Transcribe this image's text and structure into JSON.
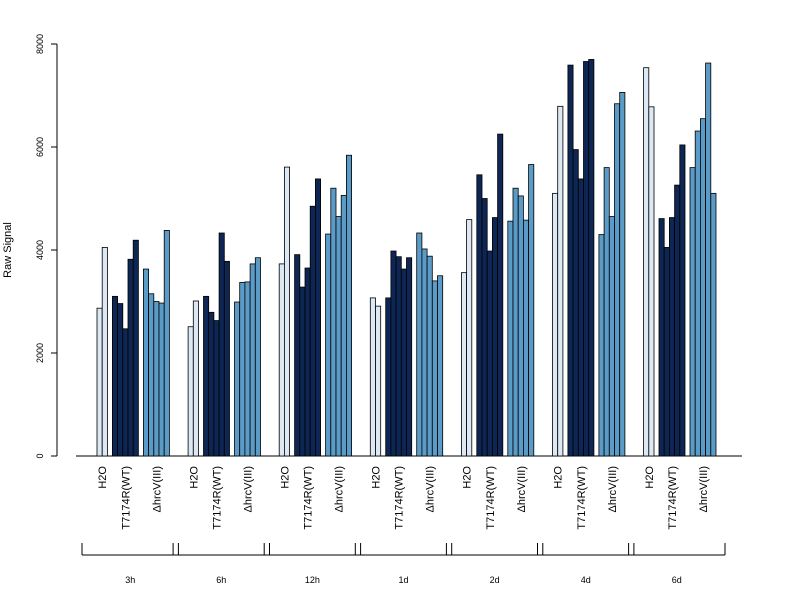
{
  "chart_data": {
    "type": "bar",
    "title": "",
    "xlabel": "",
    "ylabel": "Raw Signal",
    "ylim": [
      0,
      8000
    ],
    "yticks": [
      0,
      2000,
      4000,
      6000,
      8000
    ],
    "grid": false,
    "colors": {
      "H2O": "#dde8f5",
      "T7174R(WT)": "#0e2654",
      "ΔhrcV(III)": "#5b9bc8"
    },
    "group_labels": [
      "H2O",
      "T7174R(WT)",
      "ΔhrcV(III)"
    ],
    "periods": [
      {
        "label": "3h",
        "groups": [
          {
            "name": "H2O",
            "values": [
              2870,
              4050
            ]
          },
          {
            "name": "T7174R(WT)",
            "values": [
              3100,
              2960,
              2470,
              3820,
              4190
            ]
          },
          {
            "name": "ΔhrcV(III)",
            "values": [
              3630,
              3150,
              3000,
              2970,
              4380
            ]
          }
        ]
      },
      {
        "label": "6h",
        "groups": [
          {
            "name": "H2O",
            "values": [
              2510,
              3010
            ]
          },
          {
            "name": "T7174R(WT)",
            "values": [
              3100,
              2790,
              2630,
              4330,
              3780
            ]
          },
          {
            "name": "ΔhrcV(III)",
            "values": [
              2990,
              3370,
              3380,
              3730,
              3850
            ]
          }
        ]
      },
      {
        "label": "12h",
        "groups": [
          {
            "name": "H2O",
            "values": [
              3730,
              5610
            ]
          },
          {
            "name": "T7174R(WT)",
            "values": [
              3910,
              3280,
              3650,
              4850,
              5380
            ]
          },
          {
            "name": "ΔhrcV(III)",
            "values": [
              4310,
              5200,
              4650,
              5060,
              5840
            ]
          }
        ]
      },
      {
        "label": "1d",
        "groups": [
          {
            "name": "H2O",
            "values": [
              3070,
              2910
            ]
          },
          {
            "name": "T7174R(WT)",
            "values": [
              3070,
              3980,
              3870,
              3630,
              3850
            ]
          },
          {
            "name": "ΔhrcV(III)",
            "values": [
              4330,
              4020,
              3880,
              3400,
              3500
            ]
          }
        ]
      },
      {
        "label": "2d",
        "groups": [
          {
            "name": "H2O",
            "values": [
              3560,
              4590
            ]
          },
          {
            "name": "T7174R(WT)",
            "values": [
              5460,
              5000,
              3980,
              4630,
              6250
            ]
          },
          {
            "name": "ΔhrcV(III)",
            "values": [
              4560,
              5200,
              5050,
              4580,
              5660
            ]
          }
        ]
      },
      {
        "label": "4d",
        "groups": [
          {
            "name": "H2O",
            "values": [
              5100,
              6790
            ]
          },
          {
            "name": "T7174R(WT)",
            "values": [
              7590,
              5950,
              5380,
              7660,
              7700
            ]
          },
          {
            "name": "ΔhrcV(III)",
            "values": [
              4300,
              5600,
              4650,
              6840,
              7060
            ]
          }
        ]
      },
      {
        "label": "6d",
        "groups": [
          {
            "name": "H2O",
            "values": [
              7540,
              6780
            ]
          },
          {
            "name": "T7174R(WT)",
            "values": [
              4610,
              4050,
              4630,
              5260,
              6040
            ]
          },
          {
            "name": "ΔhrcV(III)",
            "values": [
              5600,
              6310,
              6550,
              7630,
              5100
            ]
          }
        ]
      }
    ]
  }
}
